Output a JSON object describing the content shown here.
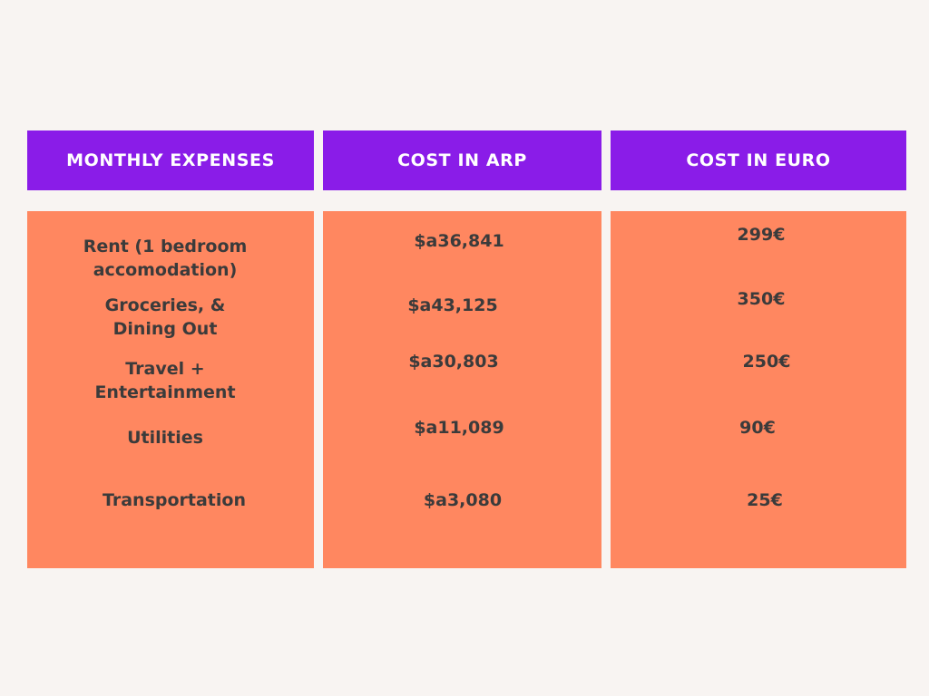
{
  "colors": {
    "background": "#f8f4f2",
    "header_bg": "#8a1ce8",
    "body_bg": "#ff8760",
    "header_text": "#ffffff",
    "body_text": "#3b3b3b"
  },
  "headers": {
    "expenses": "MONTHLY EXPENSES",
    "arp": "COST IN ARP",
    "euro": "COST IN EURO"
  },
  "rows": [
    {
      "expense_line1": "Rent (1 bedroom",
      "expense_line2": "accomodation)",
      "arp": "$a36,841",
      "euro": "299€"
    },
    {
      "expense_line1": "Groceries, &",
      "expense_line2": "Dining Out",
      "arp": "$a43,125",
      "euro": "350€"
    },
    {
      "expense_line1": "Travel +",
      "expense_line2": "Entertainment",
      "arp": "$a30,803",
      "euro": "250€"
    },
    {
      "expense_line1": "Utilities",
      "expense_line2": "",
      "arp": "$a11,089",
      "euro": "90€"
    },
    {
      "expense_line1": "Transportation",
      "expense_line2": "",
      "arp": "$a3,080",
      "euro": "25€"
    }
  ]
}
